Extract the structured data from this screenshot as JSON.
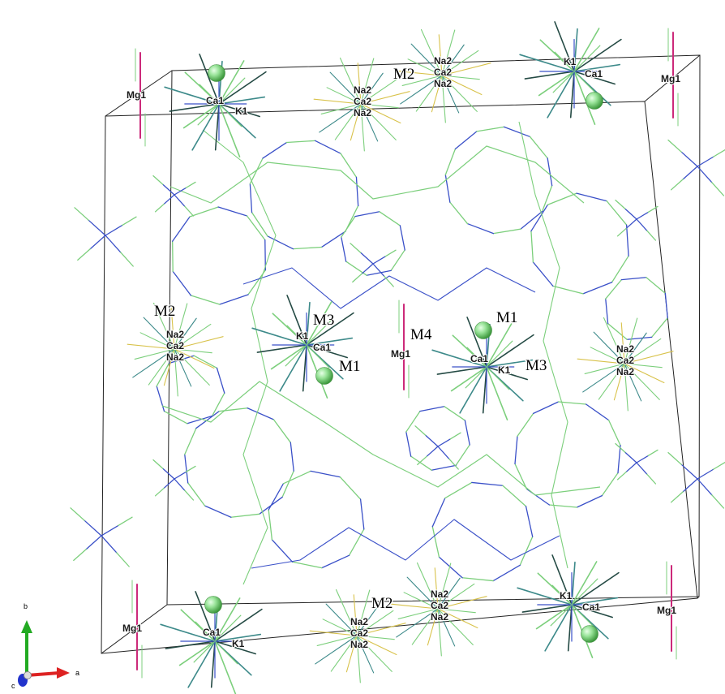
{
  "site_labels": {
    "mg1_tl": "Mg1",
    "mg1_tr": "Mg1",
    "mg1_center": "Mg1",
    "mg1_bl": "Mg1",
    "mg1_br": "Mg1",
    "ca1_tl": "Ca1",
    "k1_tl": "K1",
    "ca1_tr": "Ca1",
    "k1_tr": "K1",
    "ca1_bl": "Ca1",
    "k1_bl": "K1",
    "ca1_br": "Ca1",
    "k1_br": "K1",
    "ca1_cl": "Ca1",
    "k1_cl": "K1",
    "ca1_cr": "Ca1",
    "k1_cr": "K1",
    "na2_t1a": "Na2",
    "ca2_t1": "Ca2",
    "na2_t1b": "Na2",
    "na2_t2a": "Na2",
    "ca2_t2": "Ca2",
    "na2_t2b": "Na2",
    "na2_l_a": "Na2",
    "ca2_l": "Ca2",
    "na2_l_b": "Na2",
    "na2_r_a": "Na2",
    "ca2_r": "Ca2",
    "na2_r_b": "Na2",
    "na2_b1a": "Na2",
    "ca2_b1": "Ca2",
    "na2_b1b": "Na2",
    "na2_b2a": "Na2",
    "ca2_b2": "Ca2",
    "na2_b2b": "Na2"
  },
  "site_markers": {
    "m2_top": "M2",
    "m2_left": "M2",
    "m3_left": "M3",
    "m1_left": "M1",
    "m4_center": "M4",
    "m1_right": "M1",
    "m3_right": "M3",
    "m2_bottom": "M2"
  },
  "axes": {
    "b": "b",
    "a": "a",
    "c": "c"
  },
  "colors": {
    "bond_green": "#7ccf7c",
    "bond_blue": "#3a50c8",
    "bond_yellow": "#d8c24a",
    "bond_teal": "#3d8a8a",
    "bond_dark": "#244a44",
    "mg_magenta": "#cc2a7a",
    "atom_sphere": "#8fe08f",
    "cell_edge": "#222222",
    "axis_b": "#22aa22",
    "axis_a": "#dd2222",
    "axis_c": "#2233cc"
  }
}
